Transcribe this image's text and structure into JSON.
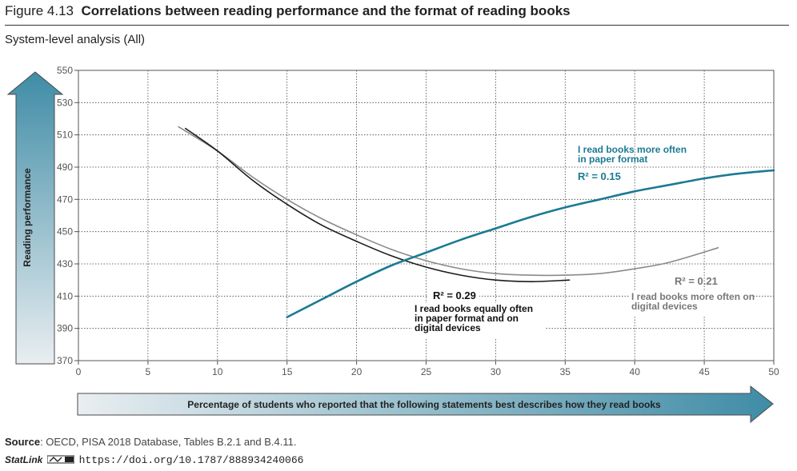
{
  "figure": {
    "number": "Figure 4.13",
    "title": "Correlations between reading performance and the format of reading books",
    "subtitle": "System-level analysis (All)"
  },
  "source": {
    "label": "Source",
    "text": ": OECD, PISA 2018 Database, Tables B.2.1 and B.4.11."
  },
  "statlink": {
    "label": "StatLink",
    "url": "https://doi.org/10.1787/888934240066"
  },
  "chart_data": {
    "type": "line",
    "ylabel": "Reading performance",
    "xlabel": "Percentage of students who reported that the following statements best describes how they read books",
    "xlim": [
      0,
      50
    ],
    "ylim": [
      370,
      550
    ],
    "x_ticks": [
      0,
      5,
      10,
      15,
      20,
      25,
      30,
      35,
      40,
      45,
      50
    ],
    "y_ticks": [
      370,
      390,
      410,
      430,
      450,
      470,
      490,
      510,
      530,
      550
    ],
    "grid": true,
    "series": [
      {
        "name": "I read books more often in paper format",
        "r2": "R² = 0.15",
        "color": "#1b7a93",
        "x": [
          15,
          17.5,
          20,
          22.5,
          25,
          27.5,
          30,
          32.5,
          35,
          37.5,
          40,
          42.5,
          45,
          47.5,
          50
        ],
        "y": [
          397,
          408,
          419,
          429,
          437,
          445,
          452,
          459,
          465,
          470,
          475,
          479,
          483,
          486,
          488
        ]
      },
      {
        "name": "I read books equally often in paper format and on digital devices",
        "r2": "R² = 0.29",
        "color": "#1a1a1a",
        "x": [
          7.7,
          10,
          12.5,
          15,
          17.5,
          20,
          22.5,
          25,
          27.5,
          30,
          32.5,
          35.3
        ],
        "y": [
          514,
          500,
          482,
          467,
          454,
          444,
          435,
          428,
          423,
          420,
          419,
          420
        ]
      },
      {
        "name": "I read books more often on digital devices",
        "r2": "R² = 0.21",
        "color": "#8a8a8a",
        "x": [
          7.2,
          10,
          12.5,
          15,
          17.5,
          20,
          22.5,
          25,
          27.5,
          30,
          32.5,
          35,
          37.5,
          40,
          42.5,
          46
        ],
        "y": [
          515,
          500,
          484,
          470,
          458,
          448,
          439,
          432,
          427,
          424,
          423,
          423,
          424,
          427,
          431,
          440
        ]
      }
    ]
  }
}
